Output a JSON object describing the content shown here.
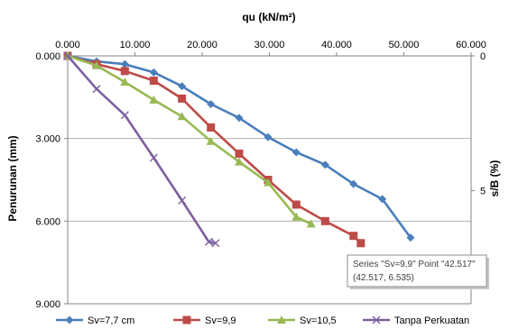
{
  "chart_data": {
    "type": "line",
    "title": "",
    "xlabel": "qu (kN/m²)",
    "ylabel": "Penurunan (mm)",
    "y2label": "s/B (%)",
    "x_axis_position": "top",
    "xlim": [
      0,
      60
    ],
    "ylim": [
      0,
      9
    ],
    "y_reversed": true,
    "xticks": [
      "0.000",
      "10.000",
      "20.000",
      "30.000",
      "40.000",
      "50.000",
      "60.000"
    ],
    "yticks": [
      "0.000",
      "3.000",
      "6.000",
      "9.000"
    ],
    "y2lim": [
      0,
      9.2
    ],
    "y2ticks": [
      "0",
      "5"
    ],
    "grid": "horizontal",
    "legend": "bottom",
    "series": [
      {
        "name": "Sv=7,7 cm",
        "color": "#4a7ebb",
        "marker": "diamond",
        "points": [
          [
            0,
            0
          ],
          [
            4.3,
            0.2
          ],
          [
            8.5,
            0.3
          ],
          [
            12.8,
            0.6
          ],
          [
            17.0,
            1.1
          ],
          [
            21.3,
            1.75
          ],
          [
            25.5,
            2.25
          ],
          [
            29.8,
            2.95
          ],
          [
            34.0,
            3.5
          ],
          [
            38.3,
            3.95
          ],
          [
            42.5,
            4.65
          ],
          [
            46.8,
            5.2
          ],
          [
            51.0,
            6.6
          ]
        ]
      },
      {
        "name": "Sv=9,9",
        "color": "#be4b48",
        "marker": "square",
        "points": [
          [
            0,
            0
          ],
          [
            4.3,
            0.3
          ],
          [
            8.5,
            0.55
          ],
          [
            12.8,
            0.9
          ],
          [
            17.0,
            1.55
          ],
          [
            21.3,
            2.6
          ],
          [
            25.5,
            3.55
          ],
          [
            29.8,
            4.5
          ],
          [
            34.0,
            5.4
          ],
          [
            38.3,
            6.0
          ],
          [
            42.517,
            6.535
          ],
          [
            43.6,
            6.8
          ]
        ]
      },
      {
        "name": "Sv=10,5",
        "color": "#98b954",
        "marker": "triangle",
        "points": [
          [
            0,
            0
          ],
          [
            4.3,
            0.35
          ],
          [
            8.5,
            0.95
          ],
          [
            12.8,
            1.6
          ],
          [
            17.0,
            2.2
          ],
          [
            21.3,
            3.1
          ],
          [
            25.5,
            3.85
          ],
          [
            29.8,
            4.6
          ],
          [
            34.0,
            5.85
          ],
          [
            36.2,
            6.1
          ]
        ]
      },
      {
        "name": "Tanpa Perkuatan",
        "color": "#7d60a0",
        "marker": "x",
        "points": [
          [
            0,
            0
          ],
          [
            4.3,
            1.2
          ],
          [
            8.5,
            2.15
          ],
          [
            12.8,
            3.7
          ],
          [
            17.0,
            5.25
          ],
          [
            21.0,
            6.75
          ],
          [
            22.0,
            6.8
          ]
        ]
      }
    ]
  },
  "tooltip": {
    "line1": "Series \"Sv=9,9\" Point \"42.517\"",
    "line2": "(42.517, 6.535)"
  }
}
